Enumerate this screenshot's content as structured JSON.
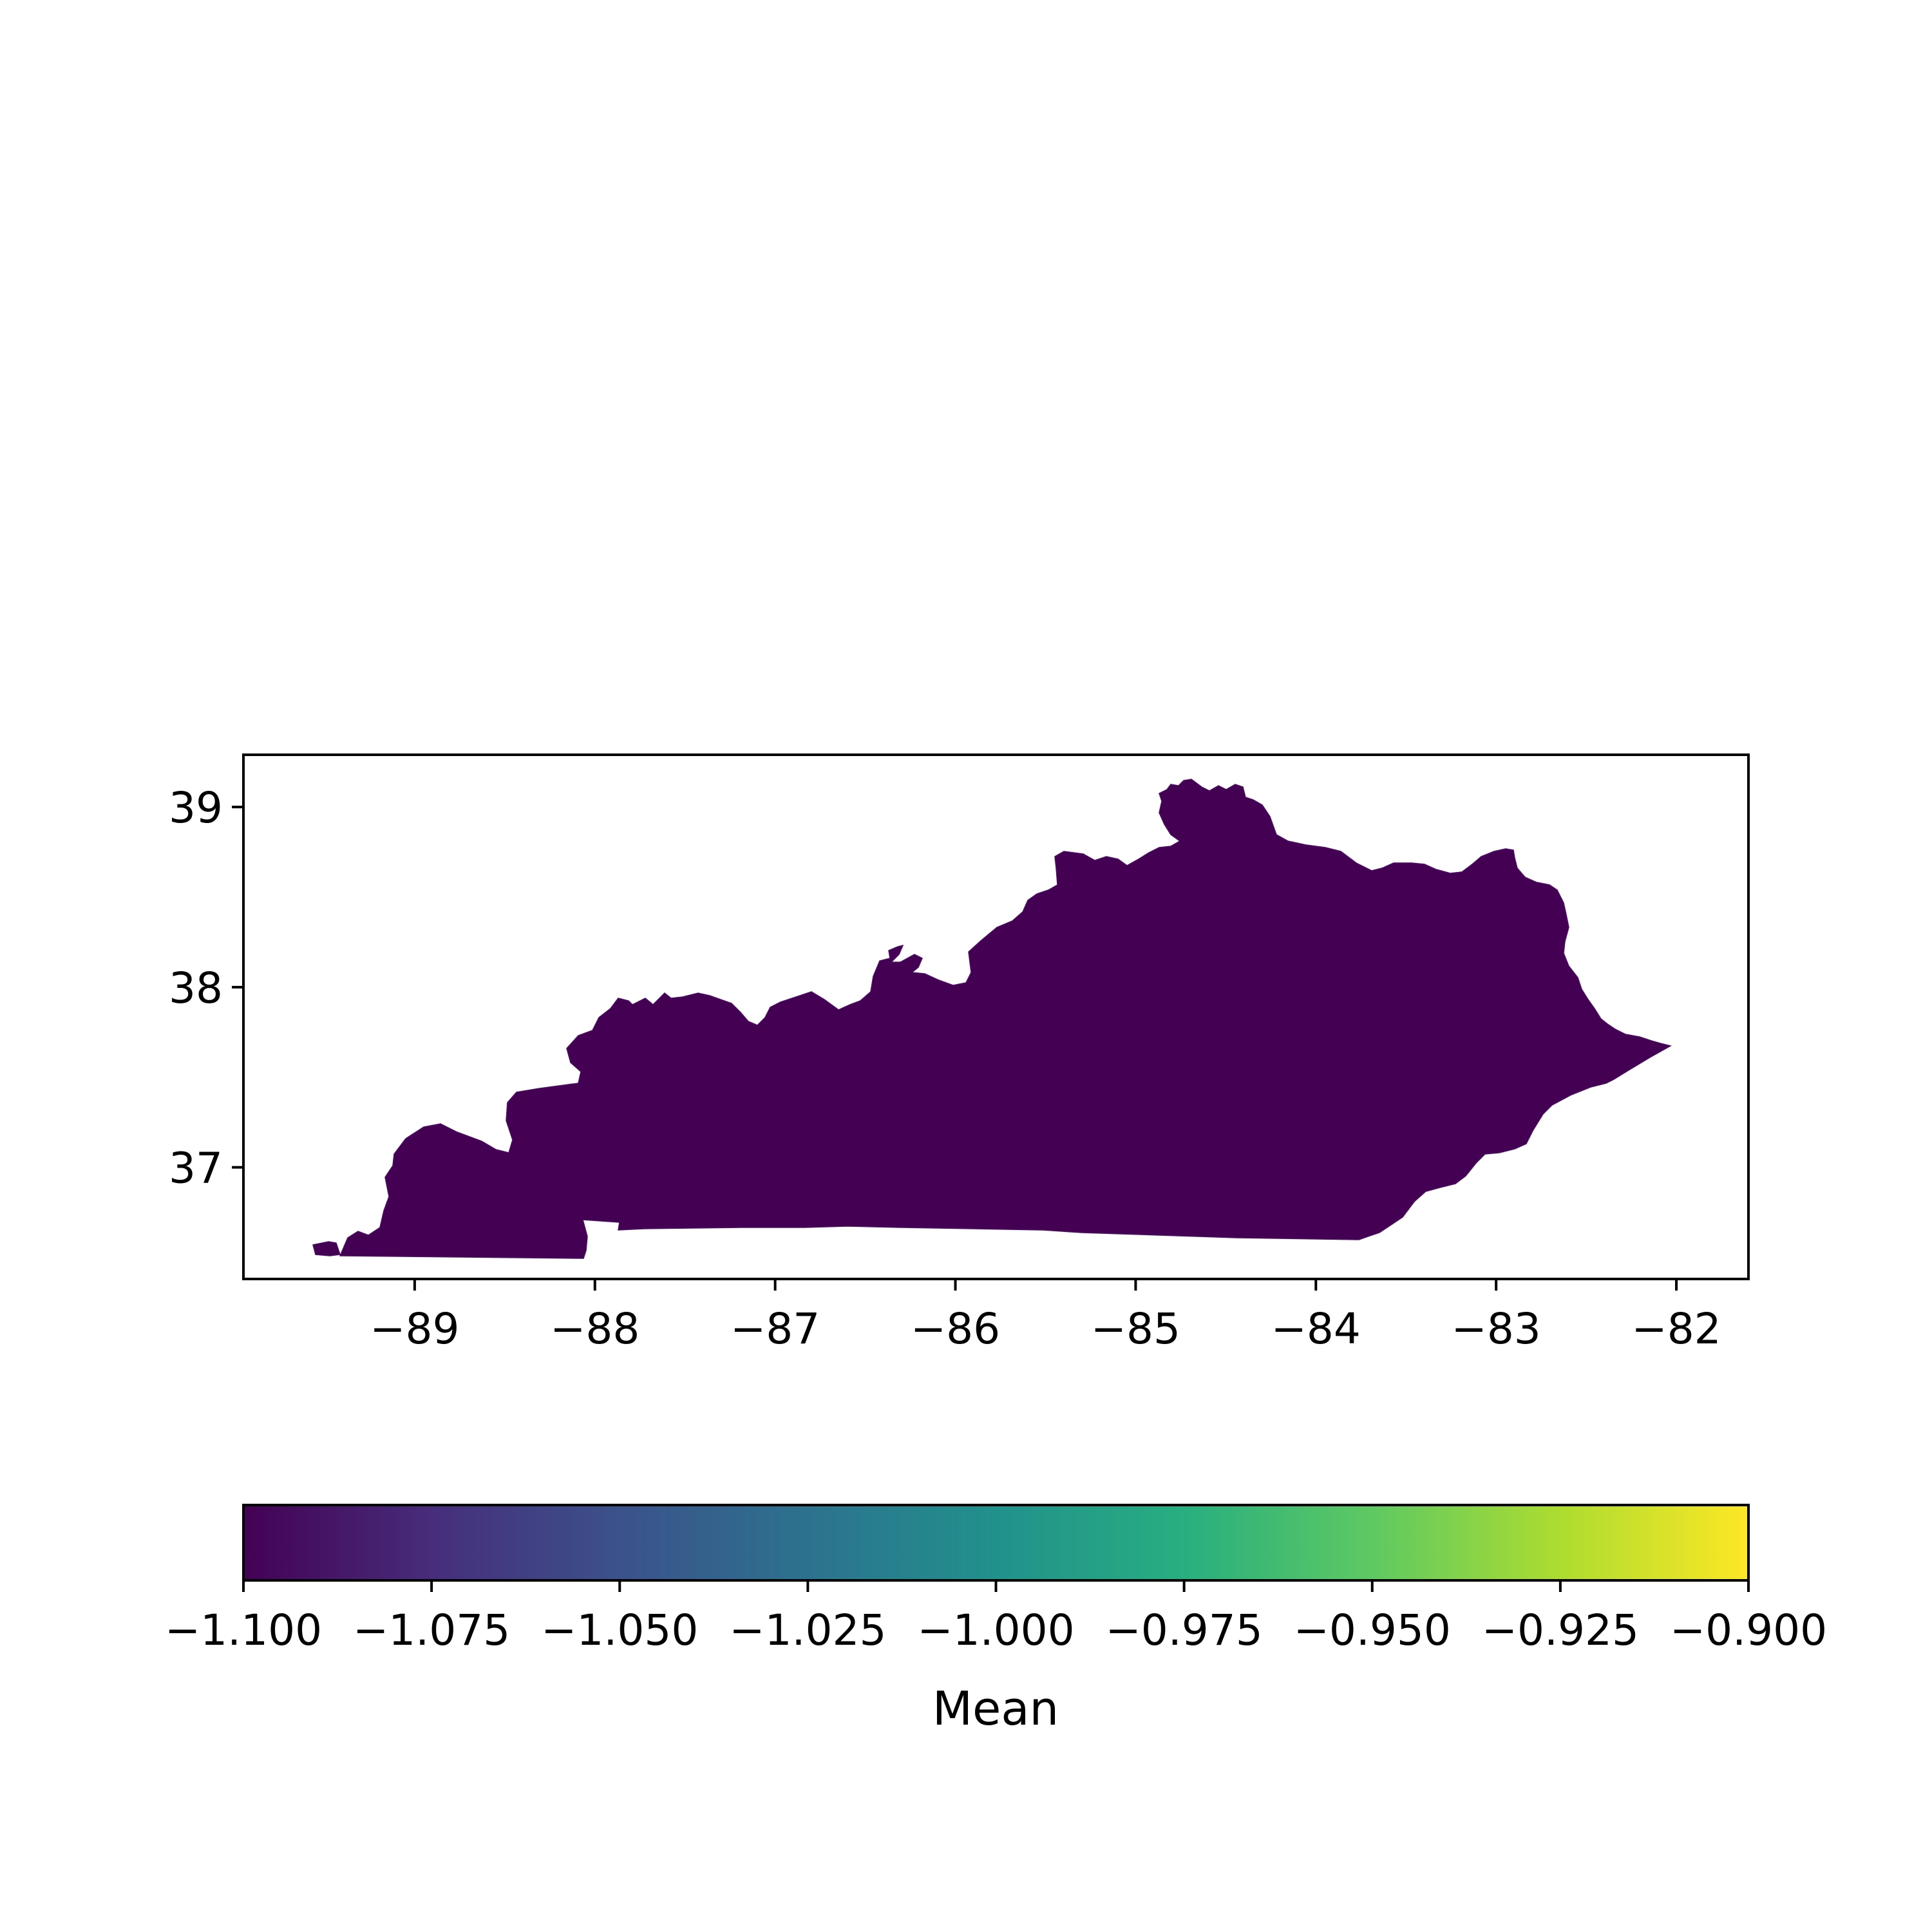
{
  "chart_data": {
    "type": "choropleth",
    "region": "Kentucky counties",
    "fill_value_all_regions": -1.1,
    "fill_color": "#440154",
    "x_ticks": [
      -89,
      -88,
      -87,
      -86,
      -85,
      -84,
      -83,
      -82
    ],
    "x_tick_labels": [
      "−89",
      "−88",
      "−87",
      "−86",
      "−85",
      "−84",
      "−83",
      "−82"
    ],
    "y_ticks": [
      37,
      38,
      39
    ],
    "y_tick_labels": [
      "37",
      "38",
      "39"
    ],
    "xlim": [
      -89.95,
      -81.6
    ],
    "ylim": [
      36.38,
      39.29
    ],
    "colorbar": {
      "label": "Mean",
      "range": [
        -1.1,
        -0.9
      ],
      "colormap": "viridis",
      "ticks": [
        -1.1,
        -1.075,
        -1.05,
        -1.025,
        -1.0,
        -0.975,
        -0.95,
        -0.925,
        -0.9
      ],
      "tick_labels": [
        "−1.100",
        "−1.075",
        "−1.050",
        "−1.025",
        "−1.000",
        "−0.975",
        "−0.950",
        "−0.925",
        "−0.900"
      ],
      "colors": [
        "#440154",
        "#472d7b",
        "#3b528b",
        "#2c728e",
        "#21918c",
        "#28ae80",
        "#5ec962",
        "#addc30",
        "#fde725"
      ]
    }
  }
}
